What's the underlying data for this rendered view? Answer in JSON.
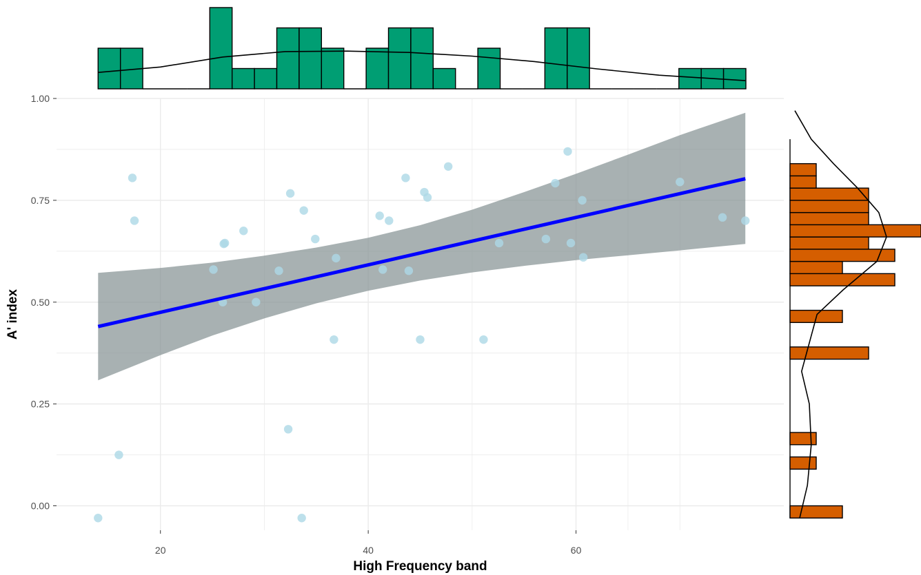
{
  "chart_data": {
    "type": "scatter",
    "title": "",
    "xlabel": "High Frequency band",
    "ylabel": "A' index",
    "xlim": [
      10,
      80
    ],
    "ylim": [
      -0.06,
      1.0
    ],
    "x_ticks": [
      {
        "value": 20,
        "label": "20"
      },
      {
        "value": 40,
        "label": "40"
      },
      {
        "value": 60,
        "label": "60"
      }
    ],
    "y_ticks": [
      {
        "value": 0.0,
        "label": "0.00"
      },
      {
        "value": 0.25,
        "label": "0.25"
      },
      {
        "value": 0.5,
        "label": "0.50"
      },
      {
        "value": 0.75,
        "label": "0.75"
      },
      {
        "value": 1.0,
        "label": "1.00"
      }
    ],
    "grid": true,
    "points": [
      {
        "x": 14.0,
        "y": -0.03
      },
      {
        "x": 16.0,
        "y": 0.125
      },
      {
        "x": 17.3,
        "y": 0.805
      },
      {
        "x": 17.5,
        "y": 0.7
      },
      {
        "x": 25.1,
        "y": 0.58
      },
      {
        "x": 26.0,
        "y": 0.5
      },
      {
        "x": 26.1,
        "y": 0.643
      },
      {
        "x": 26.2,
        "y": 0.645
      },
      {
        "x": 28.0,
        "y": 0.675
      },
      {
        "x": 29.2,
        "y": 0.5
      },
      {
        "x": 31.4,
        "y": 0.577
      },
      {
        "x": 32.3,
        "y": 0.188
      },
      {
        "x": 32.5,
        "y": 0.767
      },
      {
        "x": 33.6,
        "y": -0.03
      },
      {
        "x": 33.8,
        "y": 0.725
      },
      {
        "x": 34.9,
        "y": 0.655
      },
      {
        "x": 36.7,
        "y": 0.408
      },
      {
        "x": 36.9,
        "y": 0.608
      },
      {
        "x": 41.1,
        "y": 0.712
      },
      {
        "x": 41.4,
        "y": 0.58
      },
      {
        "x": 42.0,
        "y": 0.7
      },
      {
        "x": 43.6,
        "y": 0.805
      },
      {
        "x": 43.9,
        "y": 0.577
      },
      {
        "x": 45.0,
        "y": 0.408
      },
      {
        "x": 45.4,
        "y": 0.77
      },
      {
        "x": 45.7,
        "y": 0.757
      },
      {
        "x": 47.7,
        "y": 0.833
      },
      {
        "x": 51.1,
        "y": 0.408
      },
      {
        "x": 52.6,
        "y": 0.645
      },
      {
        "x": 57.1,
        "y": 0.655
      },
      {
        "x": 58.0,
        "y": 0.792
      },
      {
        "x": 59.2,
        "y": 0.87
      },
      {
        "x": 59.5,
        "y": 0.645
      },
      {
        "x": 60.6,
        "y": 0.75
      },
      {
        "x": 60.7,
        "y": 0.61
      },
      {
        "x": 70.0,
        "y": 0.795
      },
      {
        "x": 74.1,
        "y": 0.708
      },
      {
        "x": 76.3,
        "y": 0.7
      }
    ],
    "fit_line": {
      "x": [
        14.0,
        76.3
      ],
      "y": [
        0.44,
        0.803
      ]
    },
    "confidence_band": {
      "x": [
        14,
        20,
        25,
        30,
        35,
        40,
        45,
        50,
        55,
        60,
        65,
        70,
        76.3
      ],
      "lower": [
        0.308,
        0.37,
        0.418,
        0.46,
        0.497,
        0.528,
        0.553,
        0.573,
        0.589,
        0.603,
        0.615,
        0.627,
        0.643
      ],
      "upper": [
        0.572,
        0.584,
        0.597,
        0.614,
        0.634,
        0.658,
        0.689,
        0.727,
        0.77,
        0.815,
        0.862,
        0.91,
        0.965
      ]
    },
    "x_marginal_histogram": {
      "bin_edges": [
        14.0,
        16.15,
        18.3,
        20.45,
        22.6,
        24.75,
        26.9,
        29.05,
        31.2,
        33.35,
        35.5,
        37.65,
        39.8,
        41.95,
        44.1,
        46.25,
        48.4,
        50.55,
        52.7,
        54.85,
        57.0,
        59.15,
        61.3,
        63.45,
        65.6,
        67.75,
        69.9,
        72.05,
        74.2,
        76.35
      ],
      "counts": [
        2,
        2,
        0,
        0,
        0,
        4,
        1,
        1,
        3,
        3,
        2,
        0,
        2,
        3,
        3,
        1,
        0,
        2,
        0,
        0,
        3,
        3,
        0,
        0,
        0,
        0,
        1,
        1,
        1
      ],
      "density_curve": {
        "x": [
          14.0,
          20.0,
          26.0,
          32.0,
          38.0,
          44.0,
          50.0,
          56.0,
          62.0,
          68.0,
          76.3
        ],
        "y": [
          0.36,
          0.48,
          0.7,
          0.82,
          0.83,
          0.8,
          0.72,
          0.6,
          0.44,
          0.3,
          0.18
        ]
      }
    },
    "y_marginal_histogram": {
      "bin_edges": [
        -0.03,
        0.0,
        0.03,
        0.06,
        0.09,
        0.12,
        0.15,
        0.18,
        0.21,
        0.24,
        0.27,
        0.3,
        0.33,
        0.36,
        0.39,
        0.42,
        0.45,
        0.48,
        0.51,
        0.54,
        0.57,
        0.6,
        0.63,
        0.66,
        0.69,
        0.72,
        0.75,
        0.78,
        0.81,
        0.84,
        0.87,
        0.9
      ],
      "counts": [
        2,
        0,
        0,
        0,
        1,
        0,
        1,
        0,
        0,
        0,
        0,
        0,
        0,
        3,
        0,
        0,
        2,
        0,
        0,
        4,
        2,
        4,
        3,
        5,
        3,
        3,
        3,
        1,
        1,
        0,
        0
      ],
      "density_curve": {
        "y": [
          -0.03,
          0.05,
          0.15,
          0.25,
          0.33,
          0.4,
          0.47,
          0.53,
          0.6,
          0.66,
          0.72,
          0.78,
          0.84,
          0.9,
          0.97
        ],
        "x": [
          0.1,
          0.18,
          0.22,
          0.2,
          0.12,
          0.2,
          0.28,
          0.55,
          0.9,
          1.0,
          0.92,
          0.7,
          0.45,
          0.22,
          0.05
        ]
      }
    },
    "colors": {
      "points": "#add8e6",
      "fit_line": "#0000ff",
      "confidence_band": "#7f8c8d",
      "x_histogram": "#009e73",
      "y_histogram": "#d55e00",
      "gridline": "#ebebeb"
    }
  }
}
